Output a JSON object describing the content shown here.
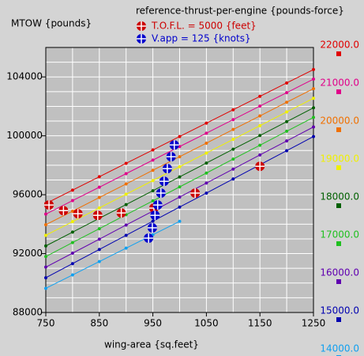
{
  "chart_data": {
    "type": "line",
    "y_label": "MTOW {pounds}",
    "legend_title": "reference-thrust-per-engine {pounds-force}",
    "x_label": "wing-area {sq.feet}",
    "xlim": [
      750,
      1250
    ],
    "ylim": [
      88000,
      106000
    ],
    "xticks": [
      750,
      850,
      950,
      1050,
      1150,
      1250
    ],
    "yticks": [
      88000,
      92000,
      96000,
      100000,
      104000
    ],
    "x_grid": [
      750,
      800,
      850,
      900,
      950,
      1000,
      1050,
      1100,
      1150,
      1200,
      1250
    ],
    "y_grid": [
      88000,
      89000,
      90000,
      91000,
      92000,
      93000,
      94000,
      95000,
      96000,
      97000,
      98000,
      99000,
      100000,
      101000,
      102000,
      103000,
      104000,
      105000,
      106000
    ],
    "grid": true,
    "x": [
      750,
      800,
      850,
      900,
      950,
      1000,
      1050,
      1100,
      1150,
      1200,
      1250
    ],
    "series": [
      {
        "name": "22000.0",
        "color": "#e00000",
        "values": [
          95400,
          96310,
          97220,
          98130,
          99040,
          99950,
          100860,
          101770,
          102680,
          103590,
          104500
        ]
      },
      {
        "name": "21000.0",
        "color": "#e0008a",
        "values": [
          94680,
          95600,
          96510,
          97430,
          98350,
          99270,
          100180,
          101100,
          102020,
          102930,
          103850
        ]
      },
      {
        "name": "20000.0",
        "color": "#f07000",
        "values": [
          93960,
          94880,
          95810,
          96730,
          97660,
          98580,
          99500,
          100430,
          101350,
          102280,
          103200
        ]
      },
      {
        "name": "19000.0",
        "color": "#f0f000",
        "values": [
          93240,
          94170,
          95100,
          96030,
          96960,
          97900,
          98830,
          99760,
          100690,
          101620,
          102550
        ]
      },
      {
        "name": "18000.0",
        "color": "#006000",
        "values": [
          92520,
          93460,
          94400,
          95330,
          96270,
          97210,
          98150,
          99090,
          100020,
          100960,
          101900
        ]
      },
      {
        "name": "17000.0",
        "color": "#20c020",
        "values": [
          91800,
          92750,
          93690,
          94640,
          95580,
          96530,
          97470,
          98420,
          99360,
          100310,
          101250
        ]
      },
      {
        "name": "16000.0",
        "color": "#6000b0",
        "values": [
          91080,
          92030,
          92980,
          93940,
          94890,
          95840,
          96790,
          97740,
          98700,
          99650,
          100600
        ]
      },
      {
        "name": "15000.0",
        "color": "#0000b0",
        "values": [
          90360,
          91320,
          92280,
          93240,
          94200,
          95160,
          96110,
          97070,
          98030,
          98990,
          99950
        ]
      },
      {
        "name": "14000.0",
        "color": "#10a0f0",
        "values": [
          89640,
          90550,
          91460,
          92370,
          93280,
          94190,
          null,
          null,
          null,
          null,
          null
        ]
      }
    ],
    "markers": [
      {
        "name": "T.O.F.L. = 5000 {feet}",
        "color": "#cc0000",
        "x": [
          756,
          783,
          810,
          847,
          891,
          952,
          1029,
          1150
        ],
        "y": [
          95300,
          94920,
          94710,
          94600,
          94760,
          95090,
          96110,
          97930
        ]
      },
      {
        "name": "V.app = 125 {knots}",
        "color": "#0000cc",
        "x": [
          942,
          949,
          954,
          959,
          965,
          971,
          977,
          984,
          990
        ],
        "y": [
          93050,
          93750,
          94600,
          95300,
          96110,
          96910,
          97770,
          98580,
          99380
        ]
      }
    ]
  }
}
